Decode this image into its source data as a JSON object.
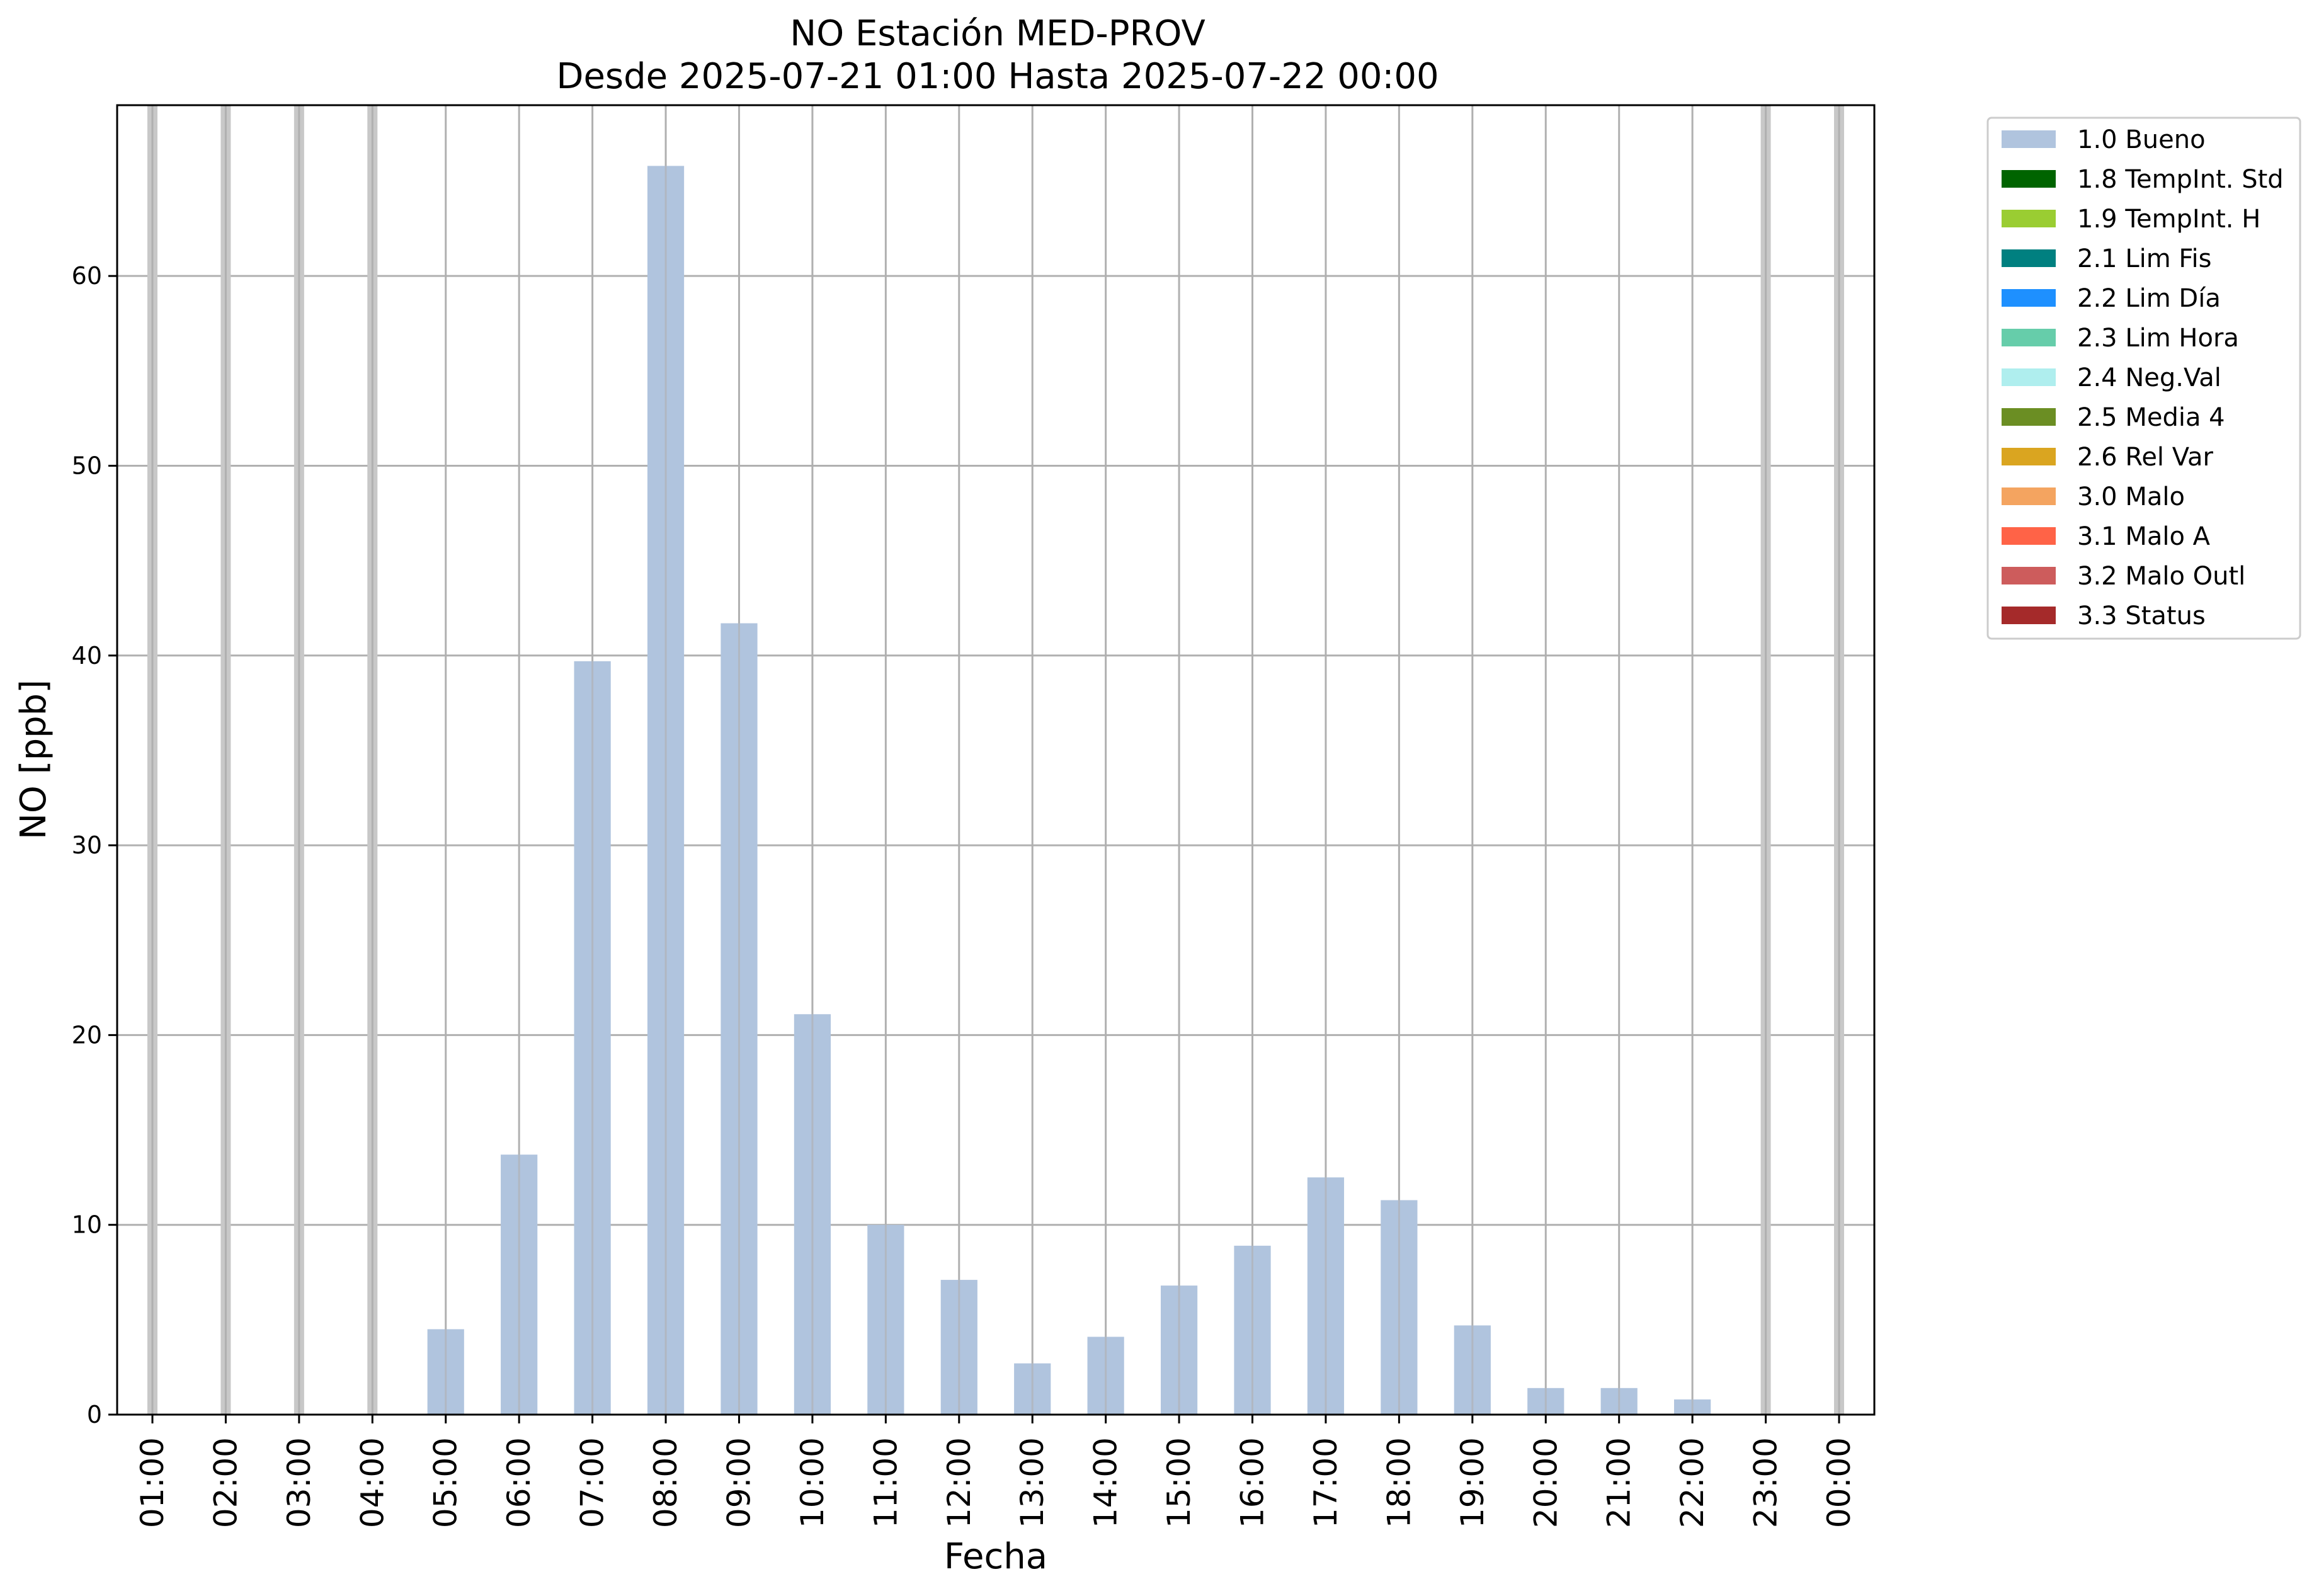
{
  "chart_data": {
    "type": "bar",
    "title": "NO Estación MED-PROV",
    "subtitle": "Desde 2025-07-21 01:00 Hasta 2025-07-22 00:00",
    "xlabel": "Fecha",
    "ylabel": "NO [ppb]",
    "ylim": [
      0,
      69
    ],
    "yticks": [
      0,
      10,
      20,
      30,
      40,
      50,
      60
    ],
    "grid": true,
    "legend_position": "outside-right",
    "categories": [
      "01:00",
      "02:00",
      "03:00",
      "04:00",
      "05:00",
      "06:00",
      "07:00",
      "08:00",
      "09:00",
      "10:00",
      "11:00",
      "12:00",
      "13:00",
      "14:00",
      "15:00",
      "16:00",
      "17:00",
      "18:00",
      "19:00",
      "20:00",
      "21:00",
      "22:00",
      "23:00",
      "00:00"
    ],
    "series": [
      {
        "name": "1.0 Bueno",
        "color": "#b0c4de",
        "values": [
          null,
          null,
          null,
          null,
          4.5,
          13.7,
          39.7,
          65.8,
          41.7,
          21.1,
          10.0,
          7.1,
          2.7,
          4.1,
          6.8,
          8.9,
          12.5,
          11.3,
          4.7,
          1.4,
          1.4,
          0.8,
          null,
          null
        ]
      }
    ],
    "missing_markers": [
      "01:00",
      "02:00",
      "03:00",
      "04:00",
      "23:00",
      "00:00"
    ],
    "legend": [
      {
        "label": "1.0 Bueno",
        "color": "#b0c4de"
      },
      {
        "label": "1.8 TempInt. Std",
        "color": "#006400"
      },
      {
        "label": "1.9 TempInt. H",
        "color": "#9acd32"
      },
      {
        "label": "2.1 Lim Fis",
        "color": "#008080"
      },
      {
        "label": "2.2 Lim Día",
        "color": "#1e90ff"
      },
      {
        "label": "2.3 Lim Hora",
        "color": "#66cdaa"
      },
      {
        "label": "2.4 Neg.Val",
        "color": "#afeeee"
      },
      {
        "label": "2.5 Media 4",
        "color": "#6b8e23"
      },
      {
        "label": "2.6 Rel Var",
        "color": "#daa520"
      },
      {
        "label": "3.0 Malo",
        "color": "#f4a460"
      },
      {
        "label": "3.1 Malo A",
        "color": "#ff6347"
      },
      {
        "label": "3.2 Malo Outl",
        "color": "#cd5c5c"
      },
      {
        "label": "3.3 Status",
        "color": "#a52a2a"
      }
    ]
  }
}
